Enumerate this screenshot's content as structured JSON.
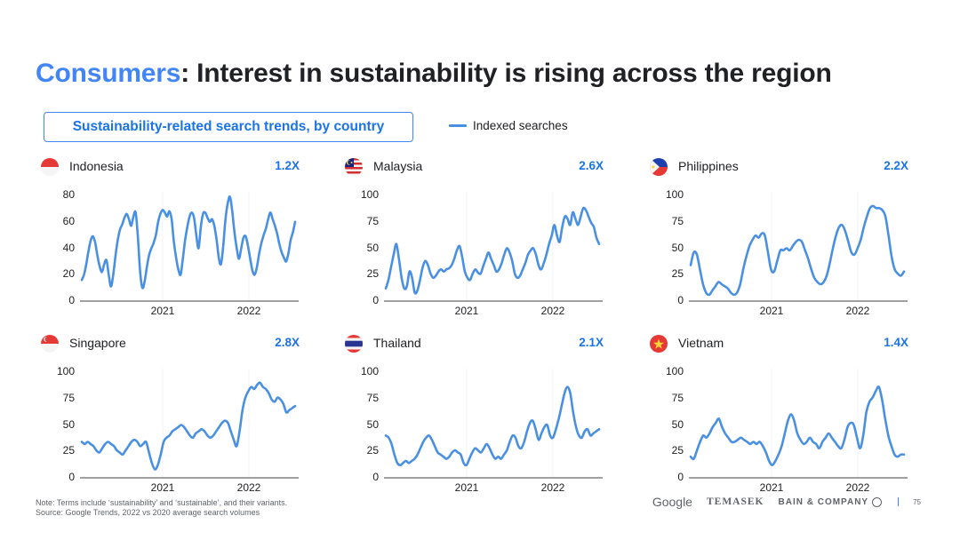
{
  "header": {
    "title_highlight": "Consumers",
    "title_rest": ": Interest in sustainability is rising across the region"
  },
  "subtitle": "Sustainability-related search trends, by country",
  "legend": {
    "label": "Indexed searches",
    "color": "#4a90e2"
  },
  "footnote": {
    "line1": "Note: Terms include ‘sustainability’ and ‘sustainable’, and their variants.",
    "line2": "Source: Google Trends, 2022 vs 2020 average search volumes"
  },
  "logos": {
    "google": "Google",
    "temasek": "TEMASEK",
    "bain": "BAIN & COMPANY",
    "page_number": "75"
  },
  "chart_data": [
    {
      "type": "line",
      "country": "Indonesia",
      "growth": "1.2X",
      "flag": "indonesia-flag",
      "ylim": [
        0,
        80
      ],
      "yticks": [
        "0",
        "20",
        "40",
        "60",
        "80"
      ],
      "xticks": [
        "2021",
        "2022"
      ],
      "x_range": [
        "2020-01",
        "2022-09"
      ],
      "values": [
        16,
        20,
        28,
        38,
        46,
        49,
        44,
        34,
        26,
        22,
        28,
        31,
        20,
        11,
        20,
        34,
        46,
        54,
        58,
        63,
        66,
        62,
        57,
        64,
        67,
        48,
        22,
        10,
        15,
        26,
        35,
        40,
        44,
        50,
        60,
        66,
        69,
        67,
        64,
        68,
        62,
        45,
        33,
        24,
        20,
        32,
        46,
        56,
        64,
        67,
        63,
        50,
        40,
        56,
        66,
        67,
        63,
        60,
        62,
        57,
        47,
        33,
        28,
        42,
        62,
        74,
        79,
        68,
        52,
        40,
        32,
        40,
        48,
        49,
        42,
        32,
        23,
        20,
        26,
        36,
        44,
        50,
        55,
        62,
        67,
        62,
        57,
        51,
        43,
        37,
        33,
        30,
        36,
        46,
        52,
        60
      ]
    },
    {
      "type": "line",
      "country": "Malaysia",
      "growth": "2.6X",
      "flag": "malaysia-flag",
      "ylim": [
        0,
        100
      ],
      "yticks": [
        "0",
        "25",
        "50",
        "75",
        "100"
      ],
      "xticks": [
        "2021",
        "2022"
      ],
      "x_range": [
        "2020-01",
        "2022-09"
      ],
      "values": [
        12,
        20,
        32,
        44,
        54,
        40,
        22,
        12,
        14,
        28,
        22,
        8,
        10,
        20,
        32,
        38,
        34,
        26,
        22,
        24,
        28,
        30,
        28,
        30,
        31,
        34,
        40,
        48,
        52,
        42,
        28,
        22,
        20,
        26,
        30,
        27,
        26,
        33,
        40,
        46,
        40,
        34,
        28,
        30,
        36,
        44,
        50,
        46,
        38,
        26,
        22,
        24,
        30,
        36,
        44,
        48,
        50,
        44,
        34,
        30,
        36,
        44,
        54,
        62,
        72,
        62,
        56,
        70,
        80,
        78,
        72,
        84,
        78,
        72,
        80,
        88,
        86,
        80,
        74,
        70,
        60,
        54
      ]
    },
    {
      "type": "line",
      "country": "Philippines",
      "growth": "2.2X",
      "flag": "philippines-flag",
      "ylim": [
        0,
        100
      ],
      "yticks": [
        "0",
        "25",
        "50",
        "75",
        "100"
      ],
      "xticks": [
        "2021",
        "2022"
      ],
      "x_range": [
        "2020-01",
        "2022-09"
      ],
      "values": [
        34,
        46,
        44,
        30,
        16,
        8,
        6,
        10,
        14,
        18,
        16,
        14,
        12,
        8,
        6,
        8,
        16,
        30,
        42,
        52,
        58,
        62,
        60,
        64,
        62,
        46,
        30,
        28,
        38,
        48,
        48,
        50,
        48,
        52,
        56,
        58,
        56,
        48,
        40,
        30,
        22,
        18,
        16,
        18,
        24,
        36,
        50,
        62,
        70,
        72,
        66,
        56,
        46,
        44,
        50,
        58,
        70,
        80,
        88,
        90,
        88,
        88,
        86,
        80,
        62,
        42,
        30,
        26,
        24,
        28
      ]
    },
    {
      "type": "line",
      "country": "Singapore",
      "growth": "2.8X",
      "flag": "singapore-flag",
      "ylim": [
        0,
        100
      ],
      "yticks": [
        "0",
        "25",
        "50",
        "75",
        "100"
      ],
      "xticks": [
        "2021",
        "2022"
      ],
      "x_range": [
        "2020-01",
        "2022-09"
      ],
      "values": [
        34,
        32,
        34,
        32,
        30,
        26,
        24,
        28,
        32,
        34,
        32,
        30,
        26,
        24,
        22,
        26,
        30,
        34,
        36,
        34,
        30,
        32,
        34,
        24,
        14,
        8,
        12,
        22,
        34,
        38,
        40,
        44,
        46,
        48,
        50,
        48,
        44,
        40,
        38,
        42,
        44,
        46,
        44,
        40,
        38,
        40,
        44,
        48,
        52,
        54,
        52,
        44,
        36,
        30,
        44,
        64,
        76,
        82,
        86,
        84,
        88,
        90,
        86,
        84,
        80,
        74,
        72,
        76,
        74,
        70,
        62,
        64,
        66,
        68
      ]
    },
    {
      "type": "line",
      "country": "Thailand",
      "growth": "2.1X",
      "flag": "thailand-flag",
      "ylim": [
        0,
        100
      ],
      "yticks": [
        "0",
        "25",
        "50",
        "75",
        "100"
      ],
      "xticks": [
        "2021",
        "2022"
      ],
      "x_range": [
        "2020-01",
        "2022-09"
      ],
      "values": [
        40,
        38,
        32,
        22,
        14,
        12,
        14,
        16,
        14,
        16,
        18,
        22,
        28,
        34,
        38,
        40,
        36,
        30,
        24,
        22,
        20,
        18,
        20,
        24,
        26,
        24,
        22,
        14,
        12,
        18,
        24,
        28,
        26,
        24,
        28,
        32,
        28,
        22,
        18,
        20,
        18,
        22,
        26,
        34,
        40,
        38,
        30,
        28,
        34,
        44,
        52,
        54,
        46,
        36,
        42,
        48,
        50,
        40,
        38,
        46,
        56,
        68,
        80,
        86,
        80,
        62,
        48,
        40,
        38,
        44,
        46,
        40,
        42,
        44,
        46
      ]
    },
    {
      "type": "line",
      "country": "Vietnam",
      "growth": "1.4X",
      "flag": "vietnam-flag",
      "ylim": [
        0,
        100
      ],
      "yticks": [
        "0",
        "25",
        "50",
        "75",
        "100"
      ],
      "xticks": [
        "2021",
        "2022"
      ],
      "x_range": [
        "2020-01",
        "2022-09"
      ],
      "values": [
        20,
        18,
        26,
        34,
        40,
        38,
        42,
        48,
        52,
        56,
        48,
        42,
        38,
        34,
        34,
        36,
        38,
        36,
        34,
        32,
        34,
        32,
        34,
        30,
        24,
        16,
        12,
        16,
        22,
        30,
        42,
        54,
        60,
        54,
        42,
        36,
        32,
        34,
        38,
        34,
        32,
        28,
        34,
        38,
        42,
        38,
        34,
        30,
        28,
        36,
        48,
        52,
        50,
        38,
        28,
        40,
        62,
        72,
        76,
        82,
        86,
        74,
        56,
        40,
        30,
        22,
        20,
        22,
        22
      ]
    }
  ]
}
